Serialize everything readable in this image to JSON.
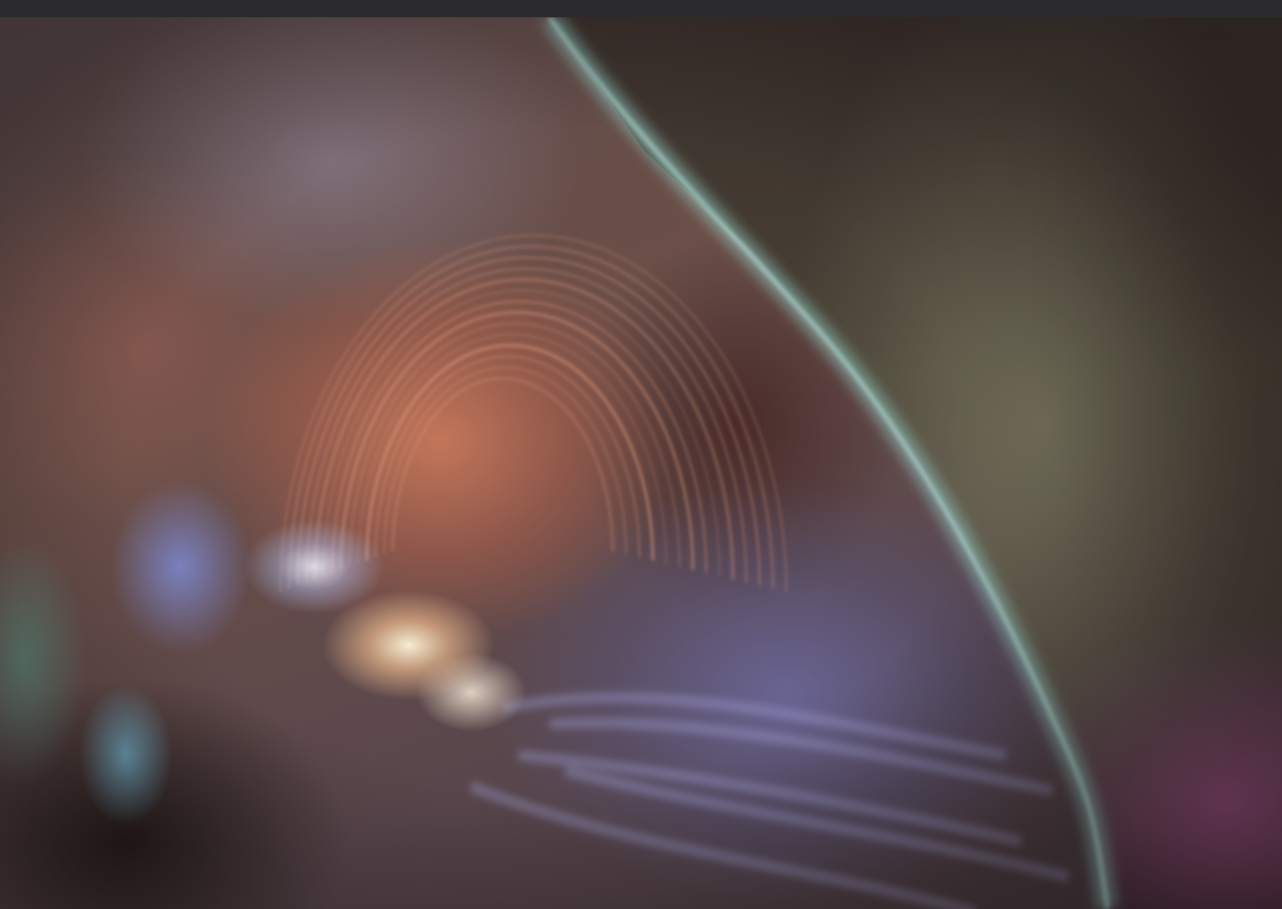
{
  "image": {
    "kind": "photograph",
    "subject": "",
    "palette": {
      "frame_bar": "#2b2b2d",
      "disk_base": "#6b4f48",
      "loop_color": "#e0a080",
      "flare_core": "#fff5d7",
      "limb_glow": "#9fd6d0",
      "corona_magenta": "#c85aaa"
    },
    "features": [
      "frame-top-bar",
      "solar-disk",
      "coronal-loops",
      "flare-core",
      "solar-limb",
      "off-limb-corona"
    ]
  }
}
